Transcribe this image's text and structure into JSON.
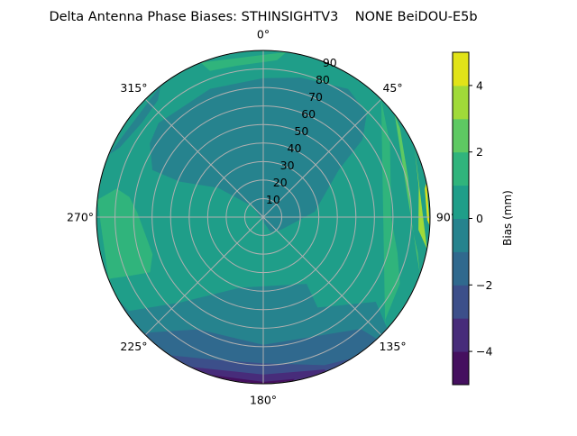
{
  "chart_data": {
    "type": "polar-contour",
    "title": "Delta Antenna Phase Biases: STHINSIGHTV3    NONE BeiDOU-E5b",
    "theta_zero": "top",
    "theta_direction": "clockwise",
    "angle_ticks": [
      "0°",
      "45°",
      "90°",
      "135°",
      "180°",
      "225°",
      "270°",
      "315°"
    ],
    "radial_ticks": [
      "10",
      "20",
      "30",
      "40",
      "50",
      "60",
      "70",
      "80",
      "90"
    ],
    "radial_range": [
      0,
      90
    ],
    "grid": true,
    "colorbar": {
      "label": "Bias (mm)",
      "levels": [
        -5,
        -4,
        -3,
        -2,
        -1,
        0,
        1,
        2,
        3,
        4,
        5
      ],
      "ticks": [
        "−4",
        "−2",
        "0",
        "2",
        "4"
      ],
      "tick_values": [
        -4,
        -2,
        0,
        2,
        4
      ],
      "colors": [
        "#45105f",
        "#472c7a",
        "#3c4f8a",
        "#30698e",
        "#26838e",
        "#1f9e89",
        "#30b47c",
        "#5ec962",
        "#a0da39",
        "#e1e318"
      ],
      "colormap": "viridis"
    },
    "background_level": [
      0,
      1
    ],
    "regions": [
      {
        "level": [
          -1,
          0
        ],
        "points": [
          [
            124,
            12
          ],
          [
            84,
            28
          ],
          [
            58,
            48
          ],
          [
            52,
            68
          ],
          [
            45,
            79
          ],
          [
            33.5,
            83
          ],
          [
            15,
            78
          ],
          [
            0,
            75
          ],
          [
            337.5,
            75
          ],
          [
            312,
            76
          ],
          [
            303,
            73
          ],
          [
            293,
            65
          ],
          [
            293,
            49
          ],
          [
            303,
            29
          ],
          [
            315,
            8
          ],
          [
            154,
            9
          ]
        ]
      },
      {
        "level": [
          -1,
          0
        ],
        "points": [
          [
            292,
            90
          ],
          [
            296,
            86
          ],
          [
            308,
            83
          ],
          [
            318,
            85
          ],
          [
            322,
            90
          ]
        ]
      },
      {
        "level": [
          1,
          2
        ],
        "points": [
          [
            338,
            90
          ],
          [
            340,
            84
          ],
          [
            350,
            83
          ],
          [
            5,
            85
          ],
          [
            8,
            90
          ]
        ]
      },
      {
        "level": [
          1,
          2
        ],
        "points": [
          [
            45,
            90
          ],
          [
            60,
            79
          ],
          [
            90,
            69
          ],
          [
            105,
            75
          ],
          [
            116,
            82
          ],
          [
            130,
            86
          ],
          [
            133,
            90
          ]
        ]
      },
      {
        "level": [
          2,
          3
        ],
        "points": [
          [
            52,
            90
          ],
          [
            57,
            88
          ],
          [
            75,
            81
          ],
          [
            92.5,
            80
          ],
          [
            103,
            85.5
          ],
          [
            110,
            90
          ]
        ]
      },
      {
        "level": [
          3,
          4
        ],
        "points": [
          [
            65,
            90
          ],
          [
            79,
            85.5
          ],
          [
            94.7,
            84
          ],
          [
            101,
            90
          ]
        ]
      },
      {
        "level": [
          4,
          5
        ],
        "points": [
          [
            78,
            90
          ],
          [
            80,
            88.5
          ],
          [
            91,
            88.5
          ],
          [
            93,
            90
          ]
        ]
      },
      {
        "level": [
          1,
          2
        ],
        "points": [
          [
            276,
            90
          ],
          [
            281,
            80.6
          ],
          [
            278.5,
            73
          ],
          [
            272,
            68
          ],
          [
            251.5,
            63
          ],
          [
            244,
            68
          ],
          [
            246,
            77.5
          ],
          [
            248,
            88.5
          ],
          [
            248,
            90
          ]
        ]
      },
      {
        "level": [
          -1,
          0
        ],
        "points": [
          [
            132,
            90
          ],
          [
            240,
            90
          ],
          [
            235,
            88.5
          ],
          [
            224,
            64
          ],
          [
            198,
            40
          ],
          [
            147,
            43
          ],
          [
            149,
            57
          ],
          [
            127,
            76
          ]
        ]
      },
      {
        "level": [
          -2,
          -1
        ],
        "points": [
          [
            137,
            90
          ],
          [
            226,
            90
          ],
          [
            210,
            70
          ],
          [
            180,
            69
          ],
          [
            139,
            80
          ]
        ]
      },
      {
        "level": [
          -3,
          -2
        ],
        "points": [
          [
            148,
            90
          ],
          [
            214,
            90
          ],
          [
            200.5,
            82
          ],
          [
            180,
            79
          ],
          [
            157.6,
            86.5
          ]
        ]
      },
      {
        "level": [
          -4,
          -3
        ],
        "points": [
          [
            158,
            90
          ],
          [
            206,
            90
          ],
          [
            180,
            85
          ],
          [
            158,
            88.7
          ]
        ]
      },
      {
        "level": [
          -5,
          -4
        ],
        "points": [
          [
            170,
            90
          ],
          [
            199,
            90
          ],
          [
            180,
            89
          ],
          [
            169,
            89
          ]
        ]
      }
    ]
  }
}
